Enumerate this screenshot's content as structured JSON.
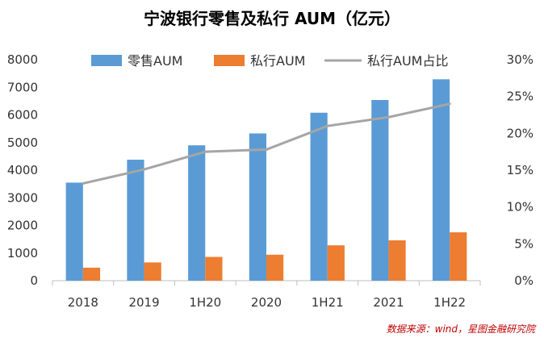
{
  "chart_data": {
    "type": "bar",
    "title": "宁波银行零售及私行 AUM（亿元）",
    "categories": [
      "2018",
      "2019",
      "1H20",
      "2020",
      "1H21",
      "2021",
      "1H22"
    ],
    "series": [
      {
        "name": "零售AUM",
        "type": "bar",
        "axis": "left",
        "color": "#5b9bd5",
        "values": [
          3550,
          4380,
          4900,
          5330,
          6080,
          6540,
          7290
        ]
      },
      {
        "name": "私行AUM",
        "type": "bar",
        "axis": "left",
        "color": "#ed7d31",
        "values": [
          470,
          660,
          860,
          940,
          1280,
          1460,
          1750
        ]
      },
      {
        "name": "私行AUM占比",
        "type": "line",
        "axis": "right",
        "color": "#a5a5a5",
        "values": [
          13.2,
          15.1,
          17.5,
          17.8,
          21.0,
          22.2,
          24.0
        ]
      }
    ],
    "y_left": {
      "min": 0,
      "max": 8000,
      "ticks": [
        "0",
        "1000",
        "2000",
        "3000",
        "4000",
        "5000",
        "6000",
        "7000",
        "8000"
      ]
    },
    "y_right": {
      "min": 0,
      "max": 30,
      "ticks": [
        "0%",
        "5%",
        "10%",
        "15%",
        "20%",
        "25%",
        "30%"
      ]
    },
    "legend_position": "top",
    "grid": false
  },
  "source_note": "数据来源：wind，星图金融研究院"
}
